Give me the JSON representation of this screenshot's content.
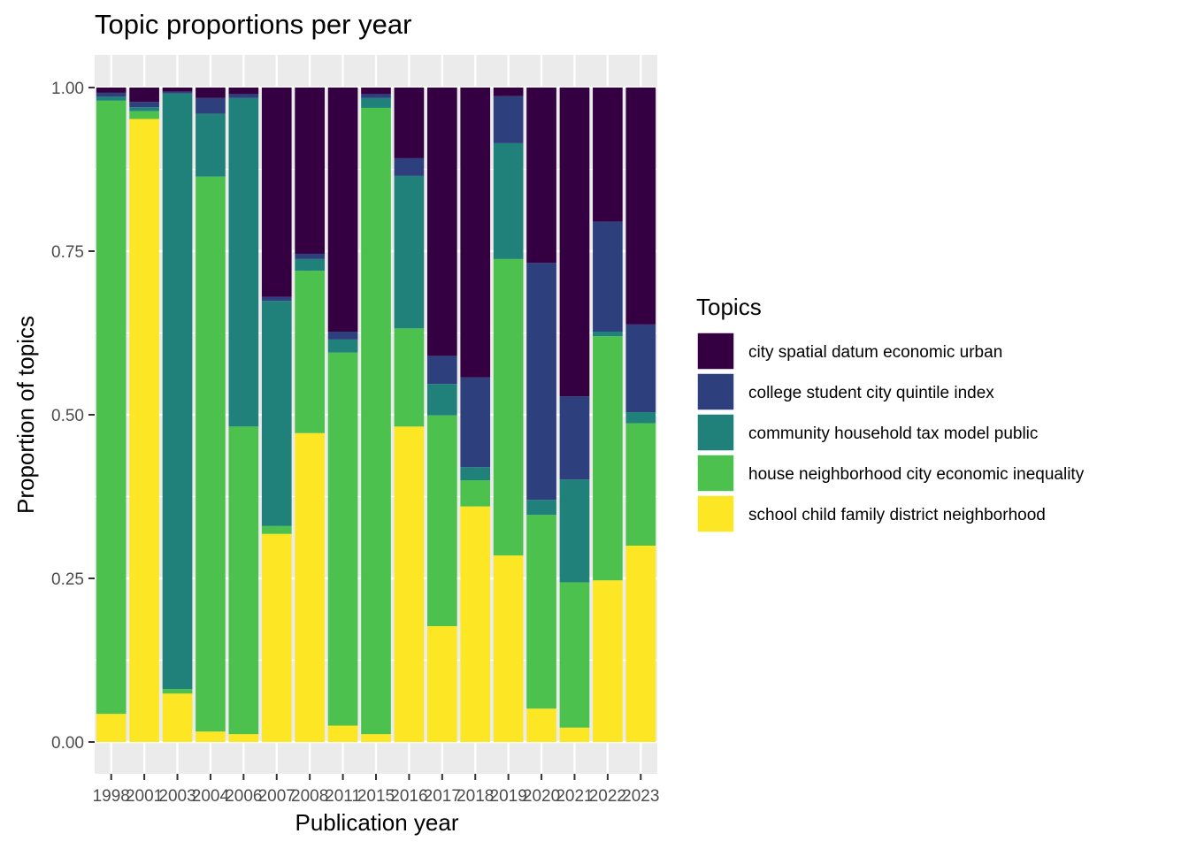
{
  "chart_data": {
    "type": "bar",
    "stacked": true,
    "title": "Topic proportions per year",
    "xlabel": "Publication year",
    "ylabel": "Proportion of topics",
    "ylim": [
      0,
      1
    ],
    "yticks": [
      "0.00",
      "0.25",
      "0.50",
      "0.75",
      "1.00"
    ],
    "grid": true,
    "legend": {
      "title": "Topics",
      "position": "right"
    },
    "categories": [
      "1998",
      "2001",
      "2003",
      "2004",
      "2006",
      "2007",
      "2008",
      "2011",
      "2015",
      "2016",
      "2017",
      "2018",
      "2019",
      "2020",
      "2021",
      "2022",
      "2023"
    ],
    "series": [
      {
        "name": "school child family district neighborhood",
        "color": "#FDE725",
        "values": [
          0.043,
          0.952,
          0.074,
          0.016,
          0.012,
          0.318,
          0.472,
          0.025,
          0.012,
          0.482,
          0.177,
          0.36,
          0.285,
          0.051,
          0.022,
          0.247,
          0.3
        ]
      },
      {
        "name": "house neighborhood city economic inequality",
        "color": "#4DC14D",
        "values": [
          0.937,
          0.012,
          0.007,
          0.848,
          0.47,
          0.012,
          0.248,
          0.57,
          0.957,
          0.15,
          0.322,
          0.04,
          0.453,
          0.296,
          0.222,
          0.373,
          0.187
        ]
      },
      {
        "name": "community household tax model public",
        "color": "#1F817A",
        "values": [
          0.006,
          0.006,
          0.91,
          0.096,
          0.502,
          0.344,
          0.018,
          0.02,
          0.015,
          0.233,
          0.048,
          0.02,
          0.177,
          0.023,
          0.157,
          0.007,
          0.017
        ]
      },
      {
        "name": "college student city quintile index",
        "color": "#2E3F7D",
        "values": [
          0.006,
          0.008,
          0.003,
          0.024,
          0.006,
          0.006,
          0.008,
          0.012,
          0.006,
          0.027,
          0.043,
          0.137,
          0.072,
          0.362,
          0.127,
          0.168,
          0.134
        ]
      },
      {
        "name": "city spatial datum economic urban",
        "color": "#340042",
        "values": [
          0.008,
          0.022,
          0.006,
          0.016,
          0.01,
          0.32,
          0.254,
          0.373,
          0.01,
          0.108,
          0.41,
          0.443,
          0.013,
          0.268,
          0.472,
          0.205,
          0.362
        ]
      }
    ]
  }
}
